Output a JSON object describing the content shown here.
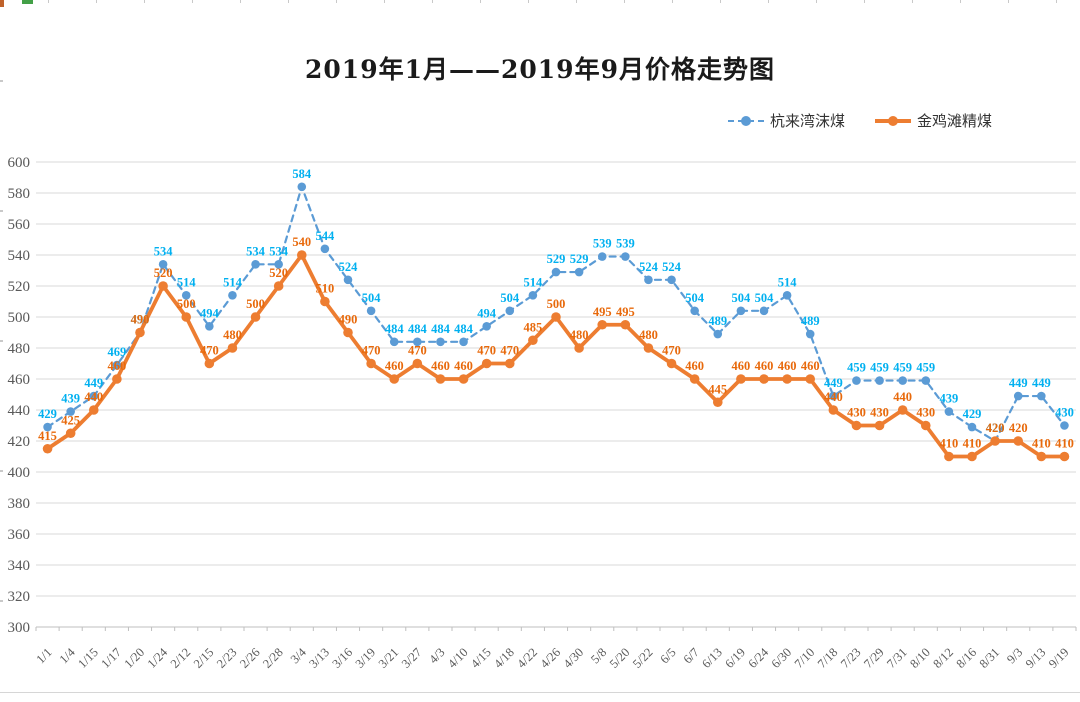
{
  "chart_data": {
    "type": "line",
    "title": "2019年1月——2019年9月价格走势图",
    "categories": [
      "1/1",
      "1/4",
      "1/15",
      "1/17",
      "1/20",
      "1/24",
      "2/12",
      "2/15",
      "2/23",
      "2/26",
      "2/28",
      "3/4",
      "3/13",
      "3/16",
      "3/19",
      "3/21",
      "3/27",
      "4/3",
      "4/10",
      "4/15",
      "4/18",
      "4/22",
      "4/26",
      "4/30",
      "5/8",
      "5/20",
      "5/22",
      "6/5",
      "6/7",
      "6/13",
      "6/19",
      "6/24",
      "6/30",
      "7/10",
      "7/18",
      "7/23",
      "7/29",
      "7/31",
      "8/10",
      "8/12",
      "8/16",
      "8/31",
      "9/3",
      "9/13",
      "9/19"
    ],
    "series": [
      {
        "name": "杭来湾沫煤",
        "color": "#5B9BD5",
        "label_color": "#00B0F0",
        "line_style": "dashed",
        "values": [
          429,
          439,
          449,
          469,
          490,
          534,
          514,
          494,
          514,
          534,
          534,
          584,
          544,
          524,
          504,
          484,
          484,
          484,
          484,
          494,
          504,
          514,
          529,
          529,
          539,
          539,
          524,
          524,
          504,
          489,
          504,
          504,
          514,
          489,
          449,
          459,
          459,
          459,
          459,
          439,
          429,
          420,
          449,
          449,
          430
        ]
      },
      {
        "name": "金鸡滩精煤",
        "color": "#ED7D31",
        "label_color": "#E8690B",
        "line_style": "solid",
        "values": [
          415,
          425,
          440,
          460,
          490,
          520,
          500,
          470,
          480,
          500,
          520,
          540,
          510,
          490,
          470,
          460,
          470,
          460,
          460,
          470,
          470,
          485,
          500,
          480,
          495,
          495,
          480,
          470,
          460,
          445,
          460,
          460,
          460,
          460,
          440,
          430,
          430,
          440,
          430,
          410,
          410,
          420,
          420,
          410,
          410
        ]
      }
    ],
    "xlabel": "",
    "ylabel": "",
    "ylim": [
      300,
      600
    ],
    "ytick_step": 20,
    "yticks": [
      300,
      320,
      340,
      360,
      380,
      400,
      420,
      440,
      460,
      480,
      500,
      520,
      540,
      560,
      580,
      600
    ],
    "grid": true,
    "data_labels": true,
    "legend_position": "top-right",
    "grid_color": "#D9D9D9",
    "axis_color": "#BFBFBF",
    "tick_label_color": "#595959"
  }
}
